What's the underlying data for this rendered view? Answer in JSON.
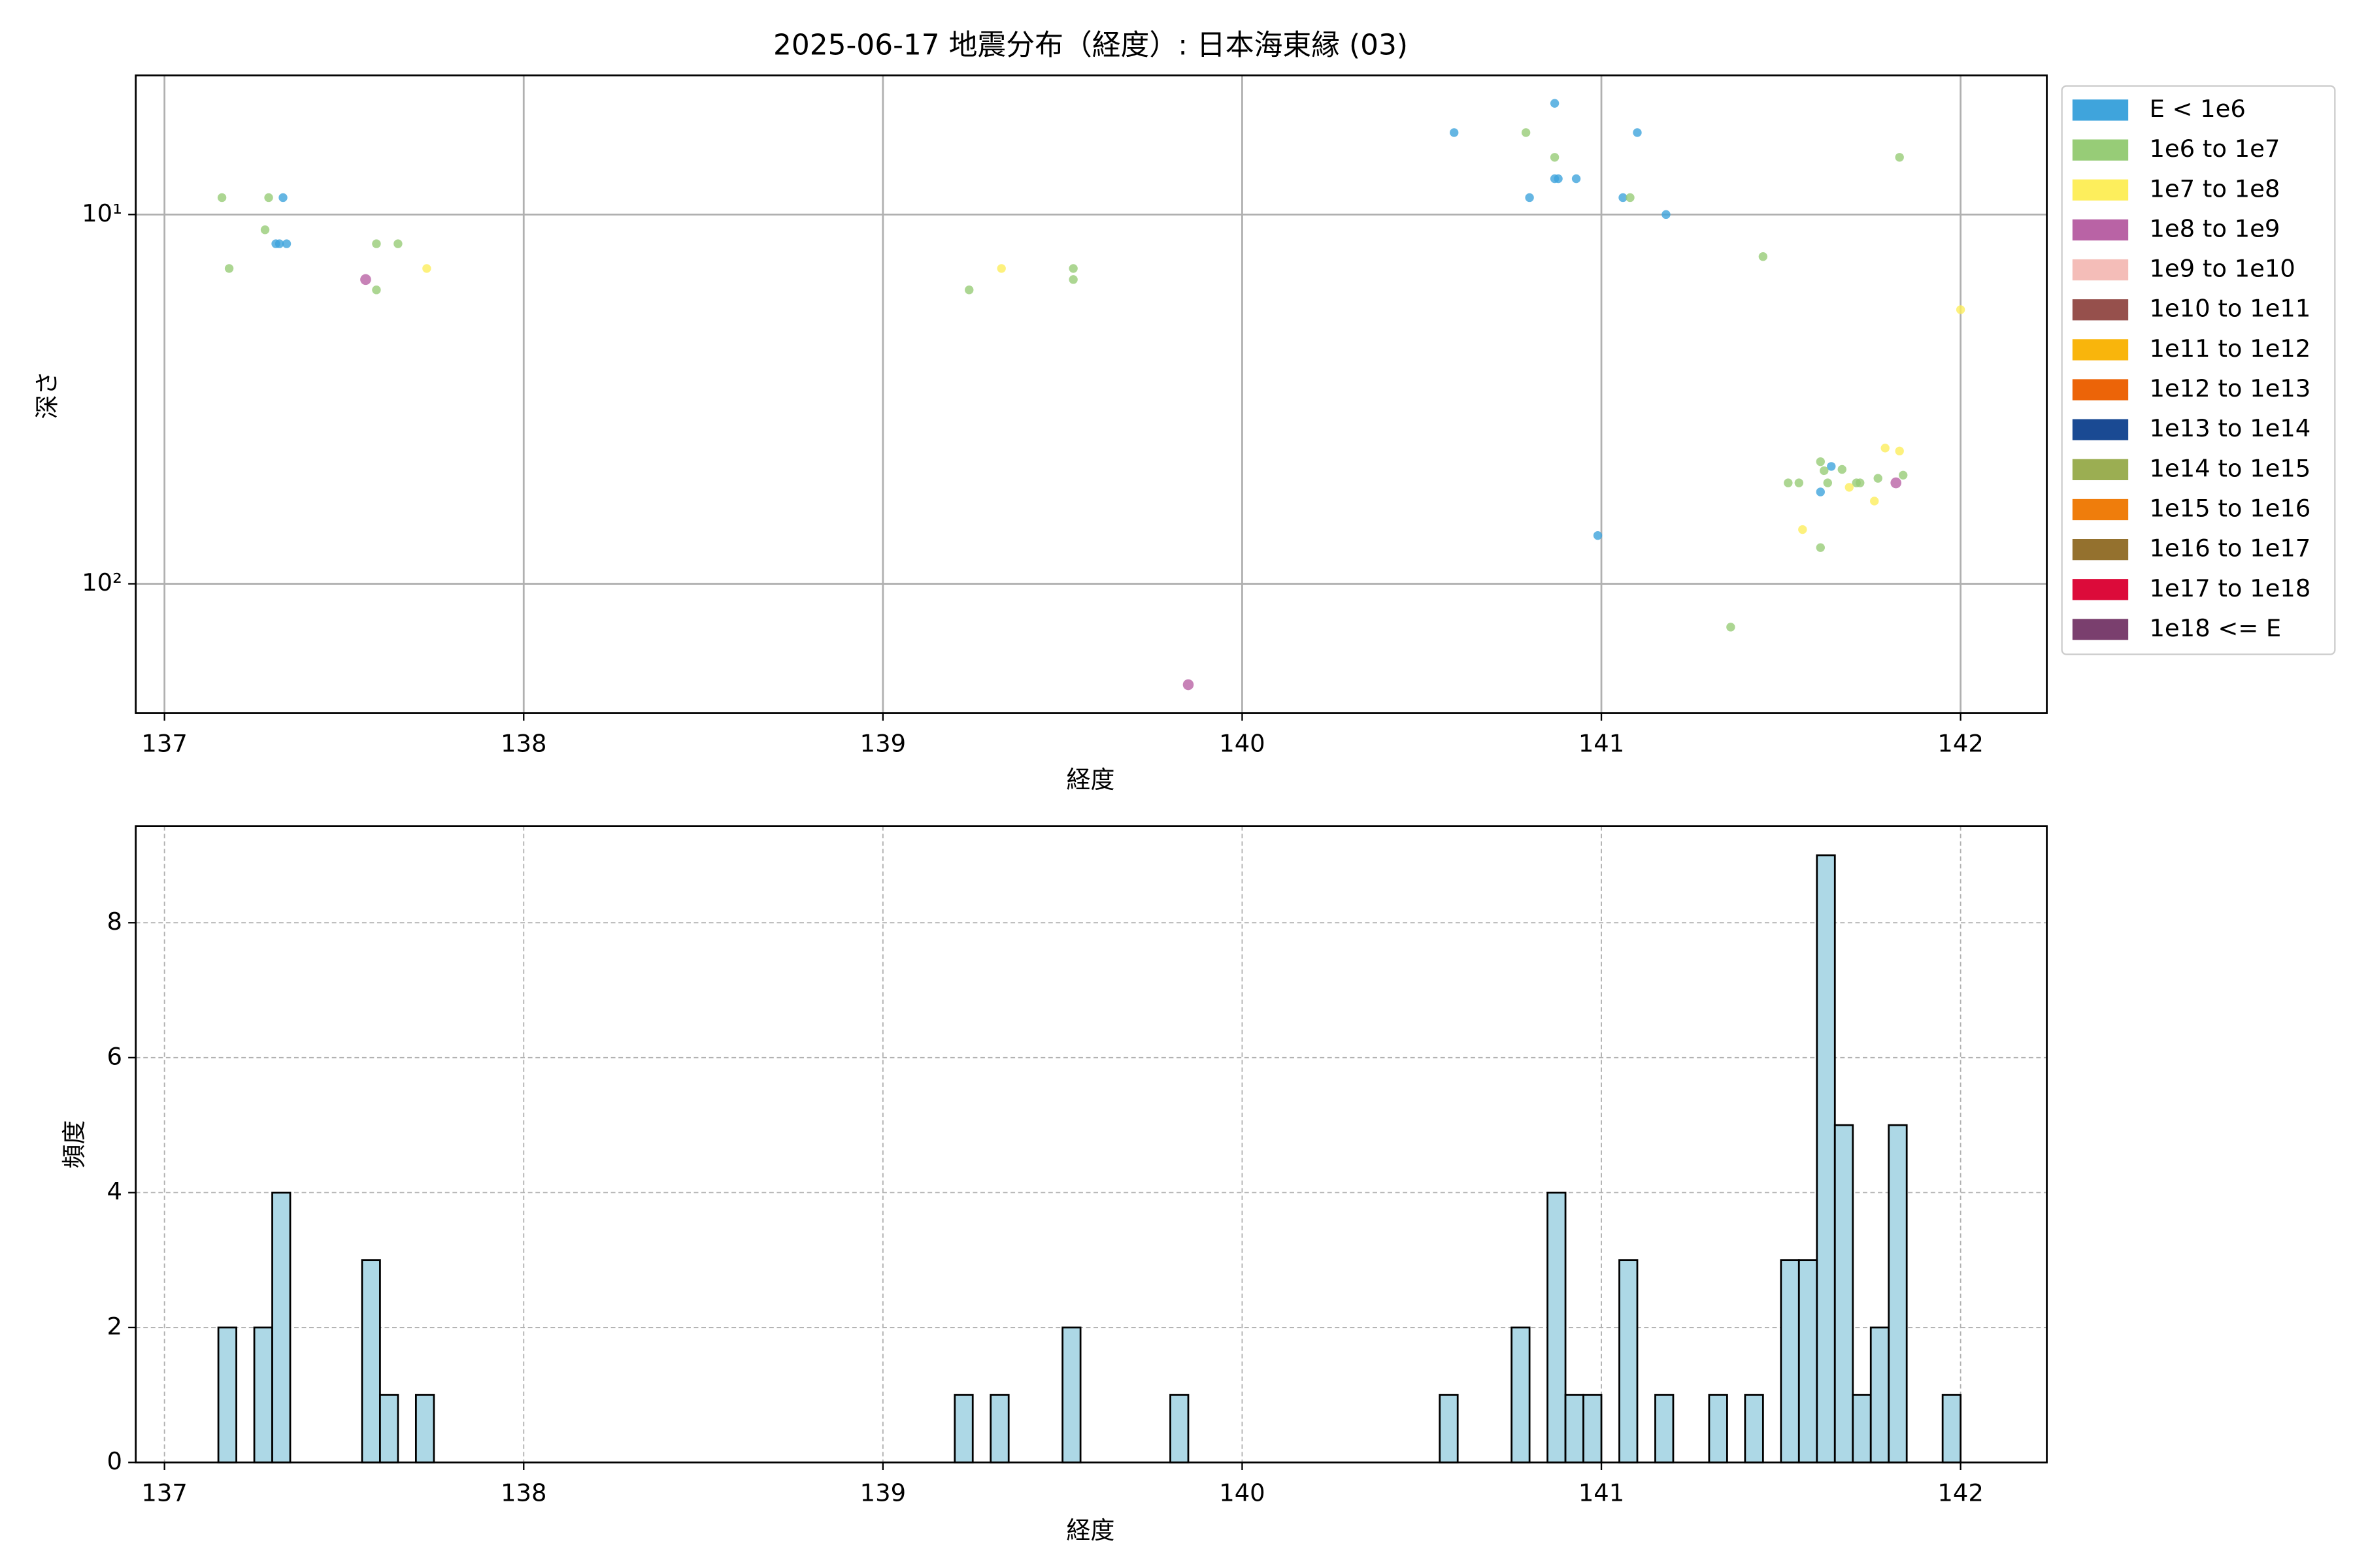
{
  "chart_data": [
    {
      "type": "scatter",
      "title": "2025-06-17 地震分布（経度）: 日本海東縁 (03)",
      "xlabel": "経度",
      "ylabel": "深さ",
      "xlim": [
        136.92,
        142.24
      ],
      "ylim": [
        4.2,
        224
      ],
      "yscale": "log",
      "y_inverted": true,
      "xticks": [
        137,
        138,
        139,
        140,
        141,
        142
      ],
      "yticks": [
        {
          "value": 10,
          "label": "10¹"
        },
        {
          "value": 100,
          "label": "10²"
        }
      ],
      "grid": true,
      "legend": "outside-right",
      "series": [
        {
          "name": "E < 1e6",
          "color": "#3fa4dc",
          "x": [
            137.33,
            137.31,
            137.32,
            137.34,
            140.59,
            140.87,
            140.8,
            140.87,
            140.88,
            140.93,
            141.06,
            141.1,
            141.18,
            140.99,
            141.61,
            141.64
          ],
          "values": [
            9.0,
            12.0,
            12.0,
            12.0,
            6.0,
            5.0,
            9.0,
            8.0,
            8.0,
            8.0,
            9.0,
            6.0,
            10,
            74,
            56.4,
            48.1
          ]
        },
        {
          "name": "1e6 to 1e7",
          "color": "#97cc77",
          "x": [
            137.16,
            137.29,
            137.28,
            137.18,
            137.59,
            137.65,
            137.59,
            139.24,
            139.53,
            139.53,
            140.79,
            140.87,
            141.08,
            141.45,
            141.83,
            141.36,
            141.61,
            141.52,
            141.55,
            141.62,
            141.63,
            141.67,
            141.71,
            141.72,
            141.77,
            141.84,
            141.61
          ],
          "values": [
            9.0,
            9.0,
            11.0,
            14.0,
            12.0,
            12.0,
            16.0,
            16.0,
            14.0,
            15.0,
            6.0,
            7.0,
            9.0,
            13.0,
            7.0,
            131,
            46.7,
            53.3,
            53.3,
            49.4,
            53.3,
            49.0,
            53.3,
            53.3,
            51.8,
            50.8,
            79.8
          ]
        },
        {
          "name": "1e7 to 1e8",
          "color": "#fdee5c",
          "x": [
            137.73,
            139.33,
            142.0,
            141.79,
            141.83,
            141.69,
            141.76,
            141.56
          ],
          "values": [
            14.0,
            14.0,
            18.1,
            42.9,
            43.7,
            54.8,
            59.7,
            71.3
          ]
        },
        {
          "name": "1e8 to 1e9",
          "color": "#b963a5",
          "x": [
            137.56,
            139.85,
            141.82
          ],
          "values": [
            15.0,
            187.6,
            53.3
          ]
        },
        {
          "name": "1e9 to 1e10",
          "color": "#f4bdb8",
          "x": [],
          "values": []
        },
        {
          "name": "1e10 to 1e11",
          "color": "#96504c",
          "x": [],
          "values": []
        },
        {
          "name": "1e11 to 1e12",
          "color": "#f9b50c",
          "x": [],
          "values": []
        },
        {
          "name": "1e12 to 1e13",
          "color": "#ec6408",
          "x": [],
          "values": []
        },
        {
          "name": "1e13 to 1e14",
          "color": "#1a4a93",
          "x": [],
          "values": []
        },
        {
          "name": "1e14 to 1e15",
          "color": "#9bae52",
          "x": [],
          "values": []
        },
        {
          "name": "1e15 to 1e16",
          "color": "#ef7d0c",
          "x": [],
          "values": []
        },
        {
          "name": "1e16 to 1e17",
          "color": "#94712e",
          "x": [],
          "values": []
        },
        {
          "name": "1e17 to 1e18",
          "color": "#dc0b3a",
          "x": [],
          "values": []
        },
        {
          "name": "1e18 <= E",
          "color": "#7a3f6e",
          "x": [],
          "values": []
        }
      ]
    },
    {
      "type": "histogram",
      "xlabel": "経度",
      "ylabel": "頻度",
      "xlim": [
        136.92,
        142.24
      ],
      "ylim": [
        0,
        9.43
      ],
      "xticks": [
        137,
        138,
        139,
        140,
        141,
        142
      ],
      "yticks": [
        0,
        2,
        4,
        6,
        8
      ],
      "grid": "dashed",
      "color": "#add8e6",
      "edgecolor": "#000000",
      "bins": [
        137.15,
        137.2,
        137.25,
        137.3,
        137.35,
        137.4,
        137.45,
        137.5,
        137.55,
        137.6,
        137.65,
        137.7,
        137.75,
        137.8,
        137.85,
        137.9,
        137.95,
        138.0,
        138.05,
        138.1,
        138.15,
        138.2,
        138.25,
        138.3,
        138.35,
        138.4,
        138.45,
        138.5,
        138.55,
        138.6,
        138.65,
        138.7,
        138.75,
        138.8,
        138.85,
        138.9,
        138.95,
        139.0,
        139.05,
        139.1,
        139.15,
        139.2,
        139.25,
        139.3,
        139.35,
        139.4,
        139.45,
        139.5,
        139.55,
        139.6,
        139.65,
        139.7,
        139.75,
        139.8,
        139.85,
        139.9,
        139.95,
        140.0,
        140.05,
        140.1,
        140.15,
        140.2,
        140.25,
        140.3,
        140.35,
        140.4,
        140.45,
        140.5,
        140.55,
        140.6,
        140.65,
        140.7,
        140.75,
        140.8,
        140.85,
        140.9,
        140.95,
        141.0,
        141.05,
        141.1,
        141.15,
        141.2,
        141.25,
        141.3,
        141.35,
        141.4,
        141.45,
        141.5,
        141.55,
        141.6,
        141.65,
        141.7,
        141.75,
        141.8,
        141.85,
        141.9,
        141.95,
        142.0
      ],
      "values": [
        2,
        0,
        2,
        4,
        0,
        0,
        0,
        0,
        3,
        1,
        0,
        1,
        0,
        0,
        0,
        0,
        0,
        0,
        0,
        0,
        0,
        0,
        0,
        0,
        0,
        0,
        0,
        0,
        0,
        0,
        0,
        0,
        0,
        0,
        0,
        0,
        0,
        0,
        0,
        0,
        0,
        1,
        0,
        1,
        0,
        0,
        0,
        2,
        0,
        0,
        0,
        0,
        0,
        1,
        0,
        0,
        0,
        0,
        0,
        0,
        0,
        0,
        0,
        0,
        0,
        0,
        0,
        0,
        1,
        0,
        0,
        0,
        2,
        0,
        4,
        1,
        1,
        0,
        3,
        0,
        1,
        0,
        0,
        1,
        0,
        1,
        0,
        3,
        3,
        9,
        5,
        1,
        2,
        5,
        0,
        0,
        1
      ]
    }
  ]
}
